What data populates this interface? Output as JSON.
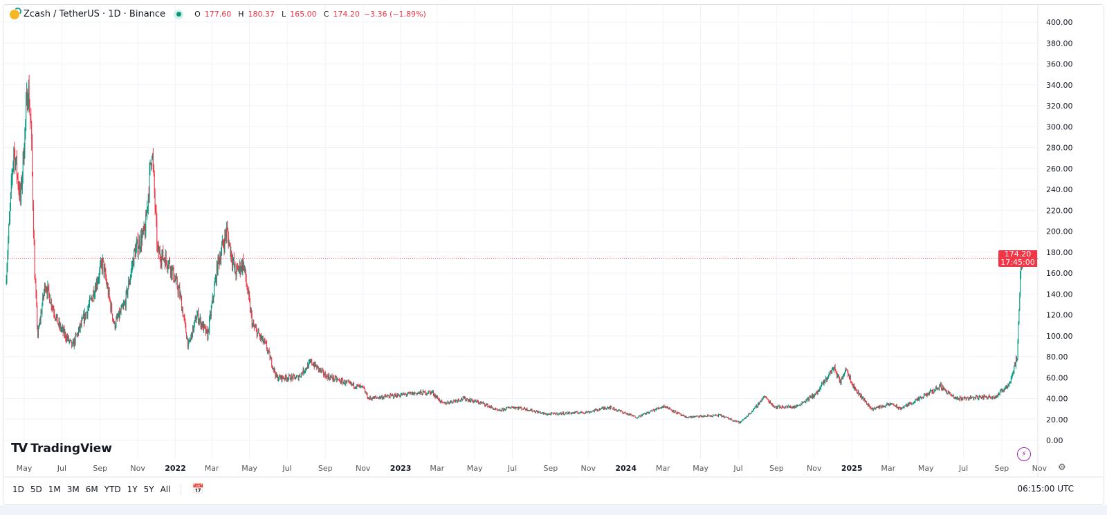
{
  "header": {
    "symbol": "Zcash / TetherUS · 1D · Binance",
    "open_label": "O",
    "open": "177.60",
    "high_label": "H",
    "high": "180.37",
    "low_label": "L",
    "low": "165.00",
    "close_label": "C",
    "close": "174.20",
    "change": "−3.36 (−1.89%)",
    "status_icon": "market-open-dot-icon"
  },
  "price_tag": {
    "price": "174.20",
    "countdown": "17:45:00"
  },
  "logo": "TradingView",
  "toolbar": {
    "ranges": [
      "1D",
      "5D",
      "1M",
      "3M",
      "6M",
      "YTD",
      "1Y",
      "5Y",
      "All"
    ],
    "goto_icon": "calendar-goto-icon",
    "timezone": "06:15:00 UTC"
  },
  "colors": {
    "up": "#089981",
    "down": "#f23645",
    "grid": "#f0f3fa"
  },
  "chart_data": {
    "type": "candlestick",
    "title": "Zcash / TetherUS · 1D · Binance",
    "ylim": [
      0,
      400
    ],
    "y_ticks": [
      "0.00",
      "20.00",
      "40.00",
      "60.00",
      "80.00",
      "100.00",
      "120.00",
      "140.00",
      "160.00",
      "180.00",
      "200.00",
      "220.00",
      "240.00",
      "260.00",
      "280.00",
      "300.00",
      "320.00",
      "340.00",
      "360.00",
      "380.00",
      "400.00"
    ],
    "x_ticks": [
      {
        "date": "2021-05-01",
        "label": "May"
      },
      {
        "date": "2021-07-01",
        "label": "Jul"
      },
      {
        "date": "2021-09-01",
        "label": "Sep"
      },
      {
        "date": "2021-11-01",
        "label": "Nov"
      },
      {
        "date": "2022-01-01",
        "label": "2022",
        "bold": true
      },
      {
        "date": "2022-03-01",
        "label": "Mar"
      },
      {
        "date": "2022-05-01",
        "label": "May"
      },
      {
        "date": "2022-07-01",
        "label": "Jul"
      },
      {
        "date": "2022-09-01",
        "label": "Sep"
      },
      {
        "date": "2022-11-01",
        "label": "Nov"
      },
      {
        "date": "2023-01-01",
        "label": "2023",
        "bold": true
      },
      {
        "date": "2023-03-01",
        "label": "Mar"
      },
      {
        "date": "2023-05-01",
        "label": "May"
      },
      {
        "date": "2023-07-01",
        "label": "Jul"
      },
      {
        "date": "2023-09-01",
        "label": "Sep"
      },
      {
        "date": "2023-11-01",
        "label": "Nov"
      },
      {
        "date": "2024-01-01",
        "label": "2024",
        "bold": true
      },
      {
        "date": "2024-03-01",
        "label": "Mar"
      },
      {
        "date": "2024-05-01",
        "label": "May"
      },
      {
        "date": "2024-07-01",
        "label": "Jul"
      },
      {
        "date": "2024-09-01",
        "label": "Sep"
      },
      {
        "date": "2024-11-01",
        "label": "Nov"
      },
      {
        "date": "2025-01-01",
        "label": "2025",
        "bold": true
      },
      {
        "date": "2025-03-01",
        "label": "Mar"
      },
      {
        "date": "2025-05-01",
        "label": "May"
      },
      {
        "date": "2025-07-01",
        "label": "Jul"
      },
      {
        "date": "2025-09-01",
        "label": "Sep"
      },
      {
        "date": "2025-11-01",
        "label": "Nov"
      }
    ],
    "last_price": 174.2,
    "grid": true,
    "close_path": [
      [
        "2021-04-01",
        150
      ],
      [
        "2021-04-14",
        280
      ],
      [
        "2021-04-25",
        230
      ],
      [
        "2021-05-07",
        340
      ],
      [
        "2021-05-12",
        300
      ],
      [
        "2021-05-18",
        160
      ],
      [
        "2021-05-23",
        100
      ],
      [
        "2021-06-04",
        150
      ],
      [
        "2021-06-26",
        110
      ],
      [
        "2021-07-18",
        90
      ],
      [
        "2021-08-15",
        130
      ],
      [
        "2021-09-05",
        170
      ],
      [
        "2021-09-24",
        110
      ],
      [
        "2021-10-11",
        130
      ],
      [
        "2021-10-27",
        180
      ],
      [
        "2021-11-13",
        200
      ],
      [
        "2021-11-24",
        280
      ],
      [
        "2021-12-03",
        180
      ],
      [
        "2021-12-22",
        170
      ],
      [
        "2022-01-08",
        140
      ],
      [
        "2022-01-22",
        90
      ],
      [
        "2022-02-05",
        120
      ],
      [
        "2022-02-22",
        100
      ],
      [
        "2022-03-11",
        170
      ],
      [
        "2022-03-25",
        200
      ],
      [
        "2022-04-08",
        160
      ],
      [
        "2022-04-21",
        170
      ],
      [
        "2022-05-06",
        110
      ],
      [
        "2022-05-28",
        90
      ],
      [
        "2022-06-14",
        60
      ],
      [
        "2022-07-18",
        60
      ],
      [
        "2022-08-09",
        75
      ],
      [
        "2022-09-01",
        62
      ],
      [
        "2022-10-04",
        55
      ],
      [
        "2022-11-01",
        50
      ],
      [
        "2022-11-10",
        40
      ],
      [
        "2022-12-11",
        42
      ],
      [
        "2023-01-24",
        45
      ],
      [
        "2023-02-21",
        46
      ],
      [
        "2023-03-10",
        35
      ],
      [
        "2023-04-13",
        40
      ],
      [
        "2023-05-16",
        35
      ],
      [
        "2023-06-08",
        28
      ],
      [
        "2023-06-30",
        32
      ],
      [
        "2023-07-23",
        30
      ],
      [
        "2023-08-25",
        25
      ],
      [
        "2023-11-01",
        27
      ],
      [
        "2023-12-04",
        32
      ],
      [
        "2024-01-18",
        22
      ],
      [
        "2024-03-03",
        33
      ],
      [
        "2024-04-06",
        22
      ],
      [
        "2024-06-01",
        24
      ],
      [
        "2024-07-04",
        17
      ],
      [
        "2024-07-27",
        30
      ],
      [
        "2024-08-12",
        42
      ],
      [
        "2024-08-29",
        32
      ],
      [
        "2024-10-02",
        32
      ],
      [
        "2024-11-05",
        45
      ],
      [
        "2024-12-03",
        70
      ],
      [
        "2024-12-14",
        55
      ],
      [
        "2024-12-22",
        70
      ],
      [
        "2025-01-05",
        50
      ],
      [
        "2025-02-02",
        30
      ],
      [
        "2025-03-08",
        35
      ],
      [
        "2025-03-19",
        30
      ],
      [
        "2025-04-22",
        40
      ],
      [
        "2025-05-25",
        52
      ],
      [
        "2025-06-17",
        40
      ],
      [
        "2025-08-23",
        42
      ],
      [
        "2025-09-14",
        55
      ],
      [
        "2025-09-26",
        80
      ],
      [
        "2025-09-29",
        120
      ],
      [
        "2025-10-02",
        170
      ],
      [
        "2025-10-05",
        174.2
      ]
    ]
  }
}
